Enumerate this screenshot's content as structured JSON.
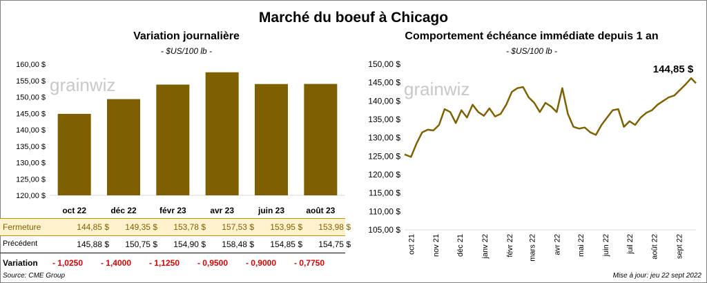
{
  "title": "Marché du boeuf à Chicago",
  "left_title": "Variation  journalière",
  "left_unit": "- $US/100 lb -",
  "right_title": "Comportement  échéance immédiate depuis 1 an",
  "right_unit": "- $US/100 lb -",
  "watermark": "grainwiz",
  "last_value": "144,85 $",
  "source": "Source: CME Group",
  "updated": "Mise à jour: jeu 22 sept 2022",
  "table": {
    "fermeture_label": "Fermeture",
    "precedent_label": "Précédent",
    "variation_label": "Variation",
    "fermeture": [
      "144,85  $",
      "149,35  $",
      "153,78  $",
      "157,53  $",
      "153,95  $",
      "153,98  $"
    ],
    "precedent": [
      "145,88  $",
      "150,75  $",
      "154,90  $",
      "158,48  $",
      "154,85  $",
      "154,75  $"
    ],
    "variation": [
      "- 1,0250",
      "- 1,4000",
      "- 1,1250",
      "- 0,9500",
      "- 0,9000",
      "- 0,7750"
    ]
  },
  "colors": {
    "bar": "#7f6000",
    "line": "#806000",
    "highlight_row": "#fff2cc",
    "negative": "#ff0000"
  },
  "chart_data": [
    {
      "type": "bar",
      "title": "Variation  journalière",
      "ylabel": "- $US/100 lb -",
      "categories": [
        "oct 22",
        "déc 22",
        "févr 23",
        "avr 23",
        "juin 23",
        "août 23"
      ],
      "values": [
        144.85,
        149.35,
        153.78,
        157.53,
        153.95,
        153.98
      ],
      "ylim": [
        120,
        160
      ],
      "yticks": [
        "120,00 $",
        "125,00 $",
        "130,00 $",
        "135,00 $",
        "140,00 $",
        "145,00 $",
        "150,00 $",
        "155,00 $",
        "160,00 $"
      ],
      "grid": false
    },
    {
      "type": "line",
      "title": "Comportement  échéance immédiate depuis 1 an",
      "ylabel": "- $US/100 lb -",
      "ylim": [
        105,
        150
      ],
      "yticks": [
        "105,00 $",
        "110,00 $",
        "115,00 $",
        "120,00 $",
        "125,00 $",
        "130,00 $",
        "135,00 $",
        "140,00 $",
        "145,00 $",
        "150,00 $"
      ],
      "xticks": [
        "oct 21",
        "nov 21",
        "déc 21",
        "janv 22",
        "févr 22",
        "mars 22",
        "avr 22",
        "mai 22",
        "juin 22",
        "juil 22",
        "août 22",
        "sept 22"
      ],
      "x": [
        "2021-09-23",
        "2021-10-01",
        "2021-10-08",
        "2021-10-15",
        "2021-10-22",
        "2021-10-29",
        "2021-11-05",
        "2021-11-12",
        "2021-11-19",
        "2021-11-26",
        "2021-12-03",
        "2021-12-10",
        "2021-12-17",
        "2021-12-24",
        "2021-12-31",
        "2022-01-07",
        "2022-01-14",
        "2022-01-21",
        "2022-01-28",
        "2022-02-04",
        "2022-02-11",
        "2022-02-18",
        "2022-02-25",
        "2022-03-04",
        "2022-03-11",
        "2022-03-18",
        "2022-03-25",
        "2022-04-01",
        "2022-04-08",
        "2022-04-15",
        "2022-04-22",
        "2022-04-29",
        "2022-05-06",
        "2022-05-13",
        "2022-05-20",
        "2022-05-27",
        "2022-06-03",
        "2022-06-10",
        "2022-06-17",
        "2022-06-24",
        "2022-07-01",
        "2022-07-08",
        "2022-07-15",
        "2022-07-22",
        "2022-07-29",
        "2022-08-05",
        "2022-08-12",
        "2022-08-19",
        "2022-08-26",
        "2022-09-02",
        "2022-09-09",
        "2022-09-16",
        "2022-09-22"
      ],
      "series": [
        {
          "values": [
            125.5,
            124.8,
            128.5,
            131.5,
            132.2,
            132.0,
            133.5,
            137.8,
            137.0,
            134.0,
            137.5,
            135.5,
            139.0,
            137.0,
            136.0,
            138.0,
            135.8,
            136.5,
            139.0,
            142.5,
            143.5,
            143.8,
            141.0,
            139.5,
            137.0,
            139.5,
            138.5,
            137.0,
            143.5,
            136.5,
            133.0,
            132.5,
            132.8,
            131.5,
            130.8,
            133.5,
            135.5,
            137.5,
            137.8,
            133.0,
            134.5,
            133.5,
            135.5,
            136.8,
            137.5,
            139.0,
            140.0,
            141.0,
            141.5,
            143.0,
            144.5,
            146.2,
            144.85
          ]
        }
      ],
      "annotation": "144,85 $",
      "grid": false
    }
  ]
}
